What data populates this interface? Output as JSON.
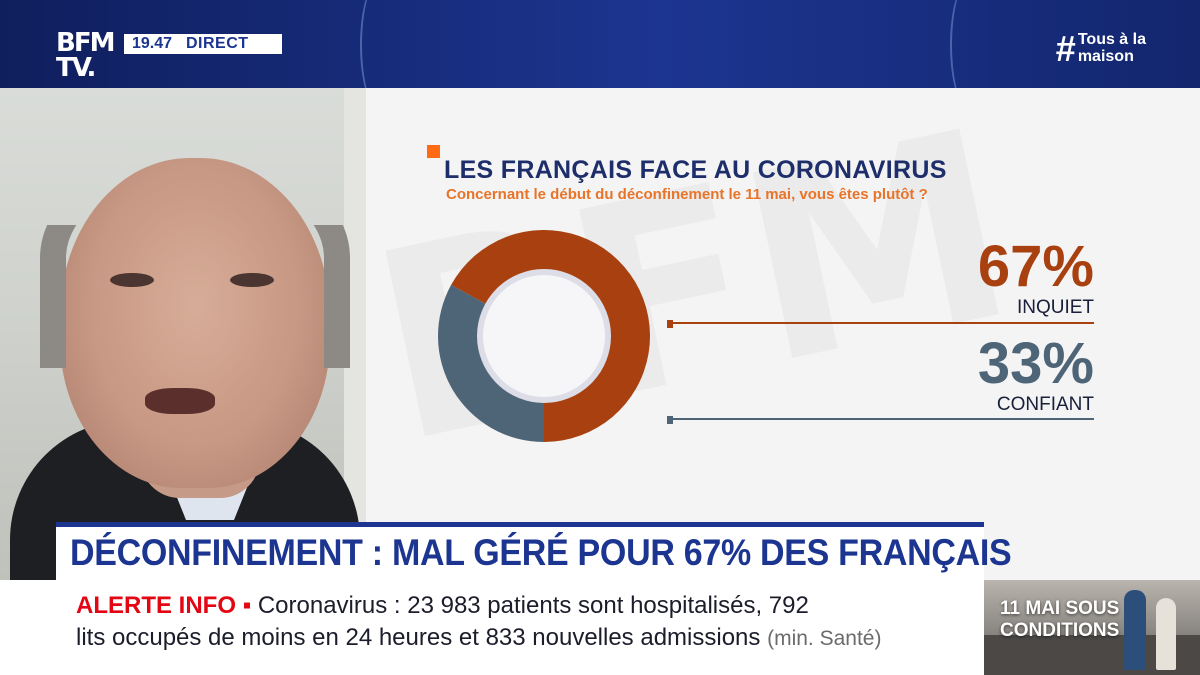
{
  "header": {
    "logo_line1": "BFM",
    "logo_line2": "TV.",
    "time": "19.47",
    "live_label": "DIRECT",
    "hashtag_symbol": "#",
    "hashtag_line1": "Tous à la",
    "hashtag_line2": "maison"
  },
  "graphic": {
    "watermark": "BFM",
    "title": "LES FRANÇAIS FACE AU CORONAVIRUS",
    "subtitle": "Concernant le début du déconfinement  le 11 mai, vous êtes plutôt ?"
  },
  "chart_data": {
    "type": "pie",
    "title": "LES FRANÇAIS FACE AU CORONAVIRUS",
    "subtitle": "Concernant le début du déconfinement  le 11 mai, vous êtes plutôt ?",
    "legend": "right",
    "slices": [
      {
        "label": "INQUIET",
        "value": 67,
        "display": "67%",
        "color": "#a8400f"
      },
      {
        "label": "CONFIANT",
        "value": 33,
        "display": "33%",
        "color": "#4e6477"
      }
    ]
  },
  "banner": {
    "headline": "DÉCONFINEMENT : MAL GÉRÉ POUR 67% DES FRANÇAIS"
  },
  "ticker": {
    "alert_label": "ALERTE INFO ▪",
    "line1": "Coronavirus : 23 983 patients sont hospitalisés, 792",
    "line2": "lits occupés de moins en 24 heures et 833 nouvelles admissions",
    "source": "(min. Santé)"
  },
  "promo": {
    "line1": "11 MAI SOUS",
    "line2": "CONDITIONS"
  },
  "colors": {
    "brand_blue": "#1c3590",
    "accent_orange": "#ff6a13",
    "alert_red": "#e30613"
  }
}
